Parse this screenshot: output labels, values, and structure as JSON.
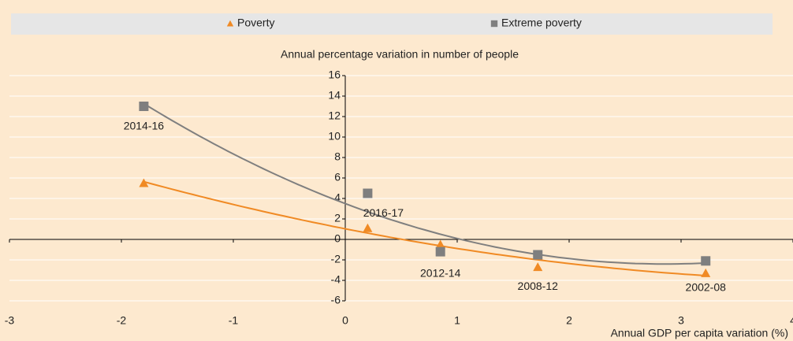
{
  "chart_data": {
    "type": "scatter",
    "title": "Annual percentage variation in number of people",
    "x_label": "Annual GDP per capita variation (%)",
    "x": [
      -1.8,
      0.2,
      0.85,
      1.72,
      3.22
    ],
    "point_labels": [
      "2014-16",
      "2016-17",
      "2012-14",
      "2008-12",
      "2002-08"
    ],
    "series": [
      {
        "name": "Poverty",
        "color": "#f08a24",
        "marker": "triangle",
        "values": [
          5.5,
          1.1,
          -0.5,
          -2.7,
          -3.3
        ]
      },
      {
        "name": "Extreme poverty",
        "color": "#7f7f7f",
        "marker": "square",
        "values": [
          13,
          4.5,
          -1.2,
          -1.5,
          -2.1
        ]
      }
    ],
    "trendline": "polynomial",
    "xlim": [
      -3,
      4
    ],
    "xticks": [
      -3,
      -2,
      -1,
      0,
      1,
      2,
      3,
      4
    ],
    "ylim": [
      -6,
      16
    ],
    "yticks": [
      -6,
      -4,
      -2,
      0,
      2,
      4,
      6,
      8,
      10,
      12,
      14,
      16
    ],
    "grid": true
  }
}
